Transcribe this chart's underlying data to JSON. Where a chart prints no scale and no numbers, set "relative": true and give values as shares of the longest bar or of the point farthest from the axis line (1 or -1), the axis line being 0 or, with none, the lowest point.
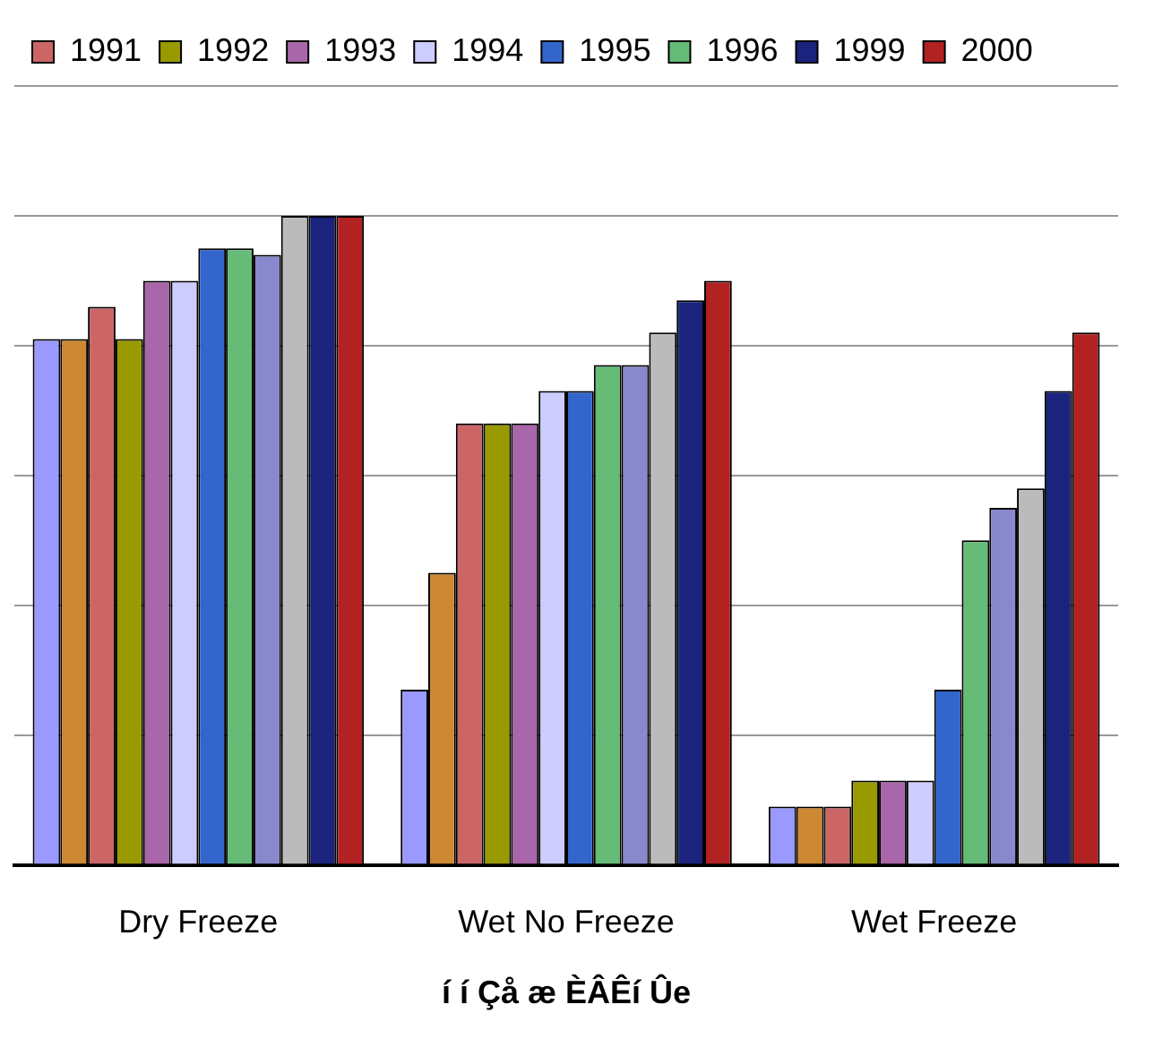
{
  "chart_data": {
    "type": "bar",
    "relative": true,
    "xlabel": "í í Çå æ ÈÂÊí Ûe",
    "categories": [
      "Dry Freeze",
      "Wet No Freeze",
      "Wet Freeze"
    ],
    "grid": "y",
    "legend": "top",
    "series": [
      {
        "color": "#9999ff",
        "values": [
          0.81,
          0.27,
          0.09
        ]
      },
      {
        "color": "#cc8833",
        "values": [
          0.81,
          0.45,
          0.09
        ]
      },
      {
        "name": "1991",
        "color": "#cc6666",
        "values": [
          0.86,
          0.68,
          0.09
        ]
      },
      {
        "name": "1992",
        "color": "#999900",
        "values": [
          0.81,
          0.68,
          0.13
        ]
      },
      {
        "name": "1993",
        "color": "#aa66aa",
        "values": [
          0.9,
          0.68,
          0.13
        ]
      },
      {
        "name": "1994",
        "color": "#ccccff",
        "values": [
          0.9,
          0.73,
          0.13
        ]
      },
      {
        "name": "1995",
        "color": "#3366cc",
        "values": [
          0.95,
          0.73,
          0.27
        ]
      },
      {
        "name": "1996",
        "color": "#66bb77",
        "values": [
          0.95,
          0.77,
          0.5
        ]
      },
      {
        "color": "#8888cc",
        "values": [
          0.94,
          0.77,
          0.55
        ]
      },
      {
        "color": "#bbbbbb",
        "values": [
          1,
          0.82,
          0.58
        ]
      },
      {
        "name": "1999",
        "color": "#1a237e",
        "values": [
          1,
          0.87,
          0.73
        ]
      },
      {
        "name": "2000",
        "color": "#b22222",
        "values": [
          1,
          0.9,
          0.82
        ]
      }
    ]
  }
}
